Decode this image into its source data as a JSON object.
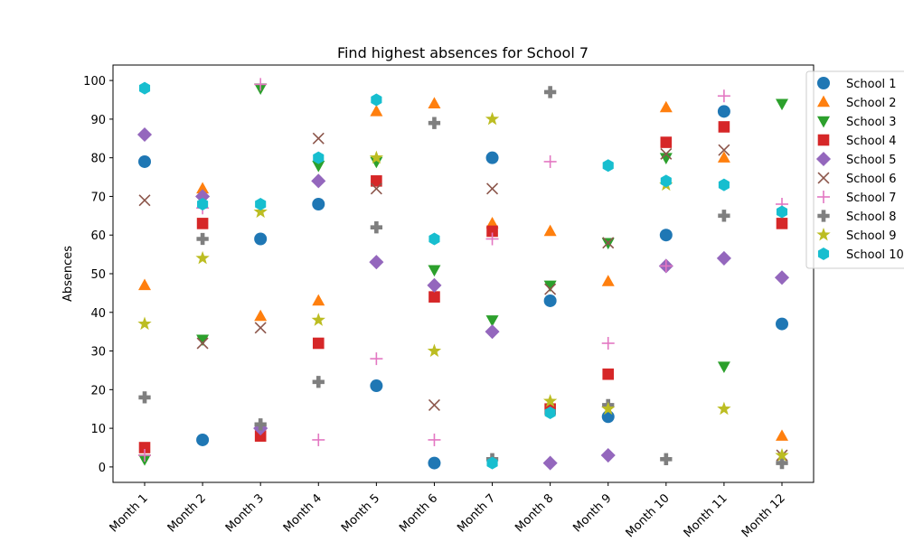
{
  "chart_data": {
    "type": "scatter",
    "title": "Find highest absences for School 7",
    "xlabel": "",
    "ylabel": "Absences",
    "ylim": [
      -4,
      104
    ],
    "yticks": [
      0,
      10,
      20,
      30,
      40,
      50,
      60,
      70,
      80,
      90,
      100
    ],
    "legend_position": "top-right (outside)",
    "categories": [
      "Month 1",
      "Month 2",
      "Month 3",
      "Month 4",
      "Month 5",
      "Month 6",
      "Month 7",
      "Month 8",
      "Month 9",
      "Month 10",
      "Month 11",
      "Month 12"
    ],
    "series": [
      {
        "name": "School 1",
        "marker": "circle",
        "color": "#1f77b4",
        "values": [
          79,
          7,
          59,
          68,
          21,
          1,
          80,
          43,
          13,
          60,
          92,
          37
        ]
      },
      {
        "name": "School 2",
        "marker": "triangle-up",
        "color": "#ff7f0e",
        "values": [
          47,
          72,
          39,
          43,
          92,
          94,
          63,
          61,
          48,
          93,
          80,
          8
        ]
      },
      {
        "name": "School 3",
        "marker": "triangle-down",
        "color": "#2ca02c",
        "values": [
          2,
          33,
          98,
          78,
          79,
          51,
          38,
          47,
          58,
          80,
          26,
          94
        ]
      },
      {
        "name": "School 4",
        "marker": "square",
        "color": "#d62728",
        "values": [
          5,
          63,
          8,
          32,
          74,
          44,
          61,
          15,
          24,
          84,
          88,
          63
        ]
      },
      {
        "name": "School 5",
        "marker": "diamond",
        "color": "#9467bd",
        "values": [
          86,
          70,
          10,
          74,
          53,
          47,
          35,
          1,
          3,
          52,
          54,
          49
        ]
      },
      {
        "name": "School 6",
        "marker": "x",
        "color": "#8c564b",
        "values": [
          69,
          32,
          36,
          85,
          72,
          16,
          72,
          46,
          58,
          81,
          82,
          3
        ]
      },
      {
        "name": "School 7",
        "marker": "plus",
        "color": "#e377c2",
        "values": [
          3,
          67,
          99,
          7,
          28,
          7,
          59,
          79,
          32,
          52,
          96,
          68
        ]
      },
      {
        "name": "School 8",
        "marker": "plus-filled",
        "color": "#7f7f7f",
        "values": [
          18,
          59,
          11,
          22,
          62,
          89,
          2,
          97,
          16,
          2,
          65,
          1
        ]
      },
      {
        "name": "School 9",
        "marker": "star",
        "color": "#bcbd22",
        "values": [
          37,
          54,
          66,
          38,
          80,
          30,
          90,
          17,
          15,
          73,
          15,
          3
        ]
      },
      {
        "name": "School 10",
        "marker": "hexagon",
        "color": "#17becf",
        "values": [
          98,
          68,
          68,
          80,
          95,
          59,
          1,
          14,
          78,
          74,
          73,
          66
        ]
      }
    ]
  }
}
